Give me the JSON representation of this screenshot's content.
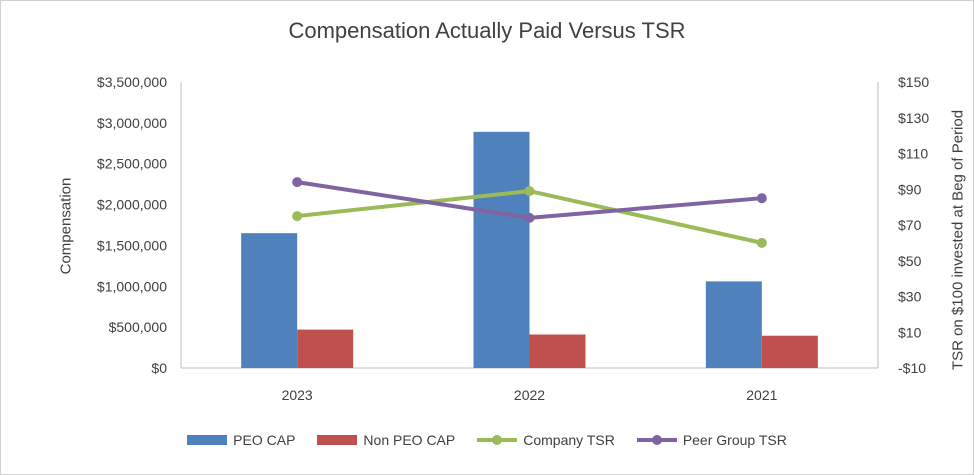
{
  "chart_data": {
    "type": "bar",
    "title": "Compensation Actually Paid Versus TSR",
    "categories": [
      "2023",
      "2022",
      "2021"
    ],
    "ylabel": "Compensation",
    "y2label": "TSR on $100 invested at Beg of Period",
    "ylim": [
      0,
      3500000
    ],
    "y2lim": [
      -10,
      150
    ],
    "yticks": [
      "$0",
      "$500,000",
      "$1,000,000",
      "$1,500,000",
      "$2,000,000",
      "$2,500,000",
      "$3,000,000",
      "$3,500,000"
    ],
    "y2ticks": [
      "-$10",
      "$10",
      "$30",
      "$50",
      "$70",
      "$90",
      "$110",
      "$130",
      "$150"
    ],
    "bar_series": [
      {
        "name": "PEO CAP",
        "color": "#4f81bd",
        "values": [
          1650000,
          2890000,
          1060000
        ]
      },
      {
        "name": "Non PEO CAP",
        "color": "#c0504d",
        "values": [
          470000,
          410000,
          395000
        ]
      }
    ],
    "line_series": [
      {
        "name": "Company TSR",
        "color": "#9bbb59",
        "values": [
          75,
          89,
          60
        ]
      },
      {
        "name": "Peer Group TSR",
        "color": "#8064a2",
        "values": [
          94,
          74,
          85
        ]
      }
    ],
    "legend_position": "bottom",
    "grid": false
  }
}
